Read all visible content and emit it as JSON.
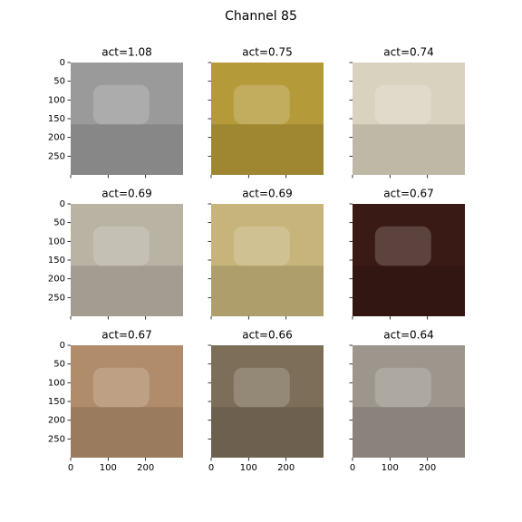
{
  "chart_data": {
    "type": "image-grid",
    "title": "Channel 85",
    "xlim": [
      0,
      300
    ],
    "ylim": [
      300,
      0
    ],
    "xticks": [
      0,
      100,
      200
    ],
    "yticks": [
      0,
      50,
      100,
      150,
      200,
      250
    ],
    "panels": [
      {
        "title": "act=1.08",
        "color": "#9a9a9a"
      },
      {
        "title": "act=0.75",
        "color": "#b59a3a"
      },
      {
        "title": "act=0.74",
        "color": "#d9d2bf"
      },
      {
        "title": "act=0.69",
        "color": "#b9b3a4"
      },
      {
        "title": "act=0.69",
        "color": "#c6b47a"
      },
      {
        "title": "act=0.67",
        "color": "#3a1a14"
      },
      {
        "title": "act=0.67",
        "color": "#b08c6a"
      },
      {
        "title": "act=0.66",
        "color": "#7d6e5a"
      },
      {
        "title": "act=0.64",
        "color": "#9c968c"
      }
    ]
  }
}
